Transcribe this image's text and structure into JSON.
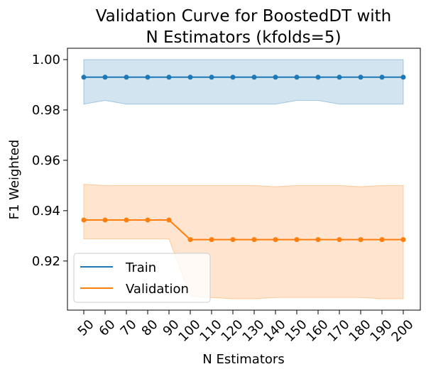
{
  "chart_data": {
    "type": "line",
    "title_line1": "Validation Curve for BoostedDT with",
    "title_line2": "N Estimators (kfolds=5)",
    "xlabel": "N Estimators",
    "ylabel": "F1 Weighted",
    "x": [
      50,
      60,
      70,
      80,
      90,
      100,
      110,
      120,
      130,
      140,
      150,
      160,
      170,
      180,
      190,
      200
    ],
    "ylim": [
      0.9005,
      1.0045
    ],
    "yticks": [
      "0.92",
      "0.94",
      "0.96",
      "0.98",
      "1.00"
    ],
    "grid": false,
    "legend_position": "lower-left",
    "series": [
      {
        "name": "Train",
        "color": "#1f77b4",
        "values": [
          0.993,
          0.993,
          0.993,
          0.993,
          0.993,
          0.993,
          0.993,
          0.993,
          0.993,
          0.993,
          0.993,
          0.993,
          0.993,
          0.993,
          0.993,
          0.993
        ],
        "upper": [
          1.0,
          1.0,
          1.0,
          1.0,
          1.0,
          1.0,
          1.0,
          1.0,
          1.0,
          1.0,
          1.0,
          1.0,
          1.0,
          1.0,
          1.0,
          1.0
        ],
        "lower": [
          0.9823,
          0.9838,
          0.9823,
          0.9823,
          0.9823,
          0.9823,
          0.9823,
          0.9823,
          0.9823,
          0.9823,
          0.9838,
          0.9838,
          0.9823,
          0.9823,
          0.9823,
          0.9823
        ]
      },
      {
        "name": "Validation",
        "color": "#ff7f0e",
        "values": [
          0.9363,
          0.9363,
          0.9363,
          0.9363,
          0.9363,
          0.9285,
          0.9285,
          0.9285,
          0.9285,
          0.9285,
          0.9285,
          0.9285,
          0.9285,
          0.9285,
          0.9285,
          0.9285
        ],
        "upper": [
          0.9505,
          0.95,
          0.95,
          0.95,
          0.95,
          0.95,
          0.95,
          0.95,
          0.95,
          0.9495,
          0.95,
          0.95,
          0.95,
          0.9495,
          0.95,
          0.95
        ],
        "lower": [
          0.9288,
          0.9288,
          0.9288,
          0.9288,
          0.9288,
          0.906,
          0.9055,
          0.905,
          0.905,
          0.9055,
          0.9055,
          0.9055,
          0.9055,
          0.9055,
          0.905,
          0.905
        ]
      }
    ]
  }
}
